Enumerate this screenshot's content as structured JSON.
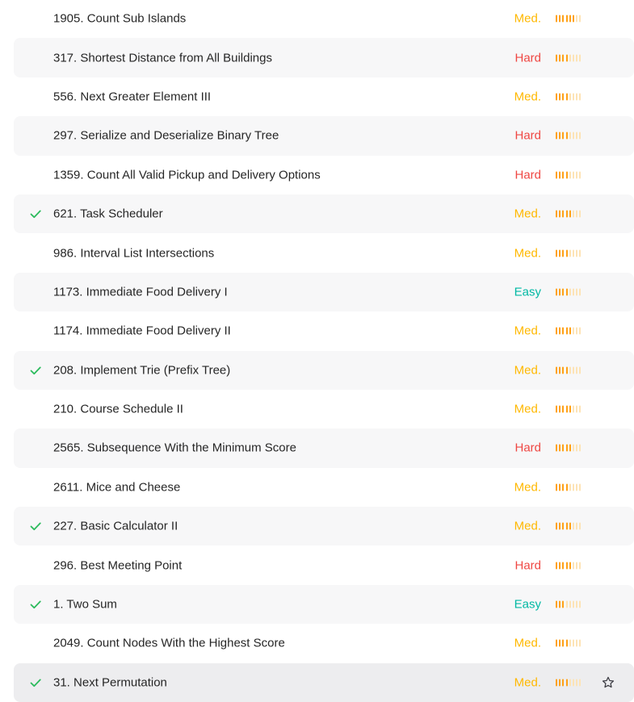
{
  "colors": {
    "easy": "#00b8a3",
    "medium": "#ffb800",
    "hard": "#ef4743",
    "solved_check": "#2cbb5d",
    "bar_on": "#ffa116",
    "bar_off": "#fde3b5"
  },
  "problems": [
    {
      "title": "1905. Count Sub Islands",
      "difficulty": "Med.",
      "level": "medium",
      "solved": false,
      "frequency_bars": 6
    },
    {
      "title": "317. Shortest Distance from All Buildings",
      "difficulty": "Hard",
      "level": "hard",
      "solved": false,
      "frequency_bars": 4
    },
    {
      "title": "556. Next Greater Element III",
      "difficulty": "Med.",
      "level": "medium",
      "solved": false,
      "frequency_bars": 4
    },
    {
      "title": "297. Serialize and Deserialize Binary Tree",
      "difficulty": "Hard",
      "level": "hard",
      "solved": false,
      "frequency_bars": 4
    },
    {
      "title": "1359. Count All Valid Pickup and Delivery Options",
      "difficulty": "Hard",
      "level": "hard",
      "solved": false,
      "frequency_bars": 4
    },
    {
      "title": "621. Task Scheduler",
      "difficulty": "Med.",
      "level": "medium",
      "solved": true,
      "frequency_bars": 5
    },
    {
      "title": "986. Interval List Intersections",
      "difficulty": "Med.",
      "level": "medium",
      "solved": false,
      "frequency_bars": 4
    },
    {
      "title": "1173. Immediate Food Delivery I",
      "difficulty": "Easy",
      "level": "easy",
      "solved": false,
      "frequency_bars": 4
    },
    {
      "title": "1174. Immediate Food Delivery II",
      "difficulty": "Med.",
      "level": "medium",
      "solved": false,
      "frequency_bars": 5
    },
    {
      "title": "208. Implement Trie (Prefix Tree)",
      "difficulty": "Med.",
      "level": "medium",
      "solved": true,
      "frequency_bars": 4
    },
    {
      "title": "210. Course Schedule II",
      "difficulty": "Med.",
      "level": "medium",
      "solved": false,
      "frequency_bars": 5
    },
    {
      "title": "2565. Subsequence With the Minimum Score",
      "difficulty": "Hard",
      "level": "hard",
      "solved": false,
      "frequency_bars": 5
    },
    {
      "title": "2611. Mice and Cheese",
      "difficulty": "Med.",
      "level": "medium",
      "solved": false,
      "frequency_bars": 4
    },
    {
      "title": "227. Basic Calculator II",
      "difficulty": "Med.",
      "level": "medium",
      "solved": true,
      "frequency_bars": 5
    },
    {
      "title": "296. Best Meeting Point",
      "difficulty": "Hard",
      "level": "hard",
      "solved": false,
      "frequency_bars": 5
    },
    {
      "title": "1. Two Sum",
      "difficulty": "Easy",
      "level": "easy",
      "solved": true,
      "frequency_bars": 3
    },
    {
      "title": "2049. Count Nodes With the Highest Score",
      "difficulty": "Med.",
      "level": "medium",
      "solved": false,
      "frequency_bars": 4
    },
    {
      "title": "31. Next Permutation",
      "difficulty": "Med.",
      "level": "medium",
      "solved": true,
      "frequency_bars": 4,
      "show_favorite": true
    }
  ],
  "frequency_total_bars": 8,
  "icons": {
    "solved": "check-icon",
    "favorite": "star-icon"
  }
}
